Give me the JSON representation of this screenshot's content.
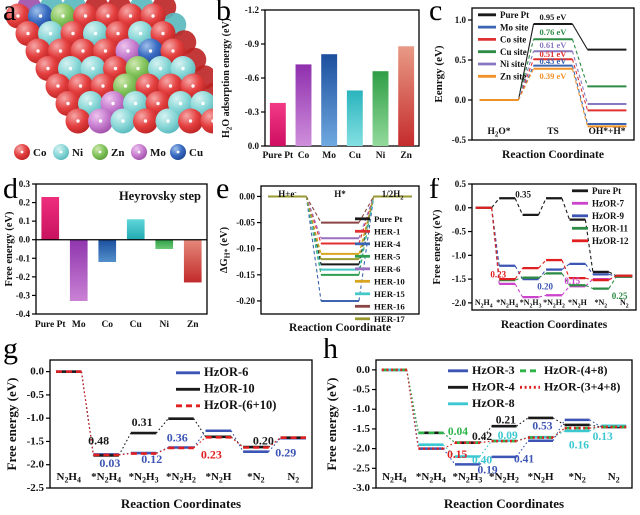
{
  "chart_data": [
    {
      "panel_letter": "a",
      "type": "lattice",
      "legend": [
        {
          "label": "Co",
          "key": "R"
        },
        {
          "label": "Ni",
          "key": "N"
        },
        {
          "label": "Zn",
          "key": "Z"
        },
        {
          "label": "Mo",
          "key": "M"
        },
        {
          "label": "Cu",
          "key": "C"
        }
      ],
      "atom_colors": {
        "R": [
          "#f6a8a8",
          "#e44040",
          "#bc2222"
        ],
        "N": [
          "#d6f2f2",
          "#8cd8d8",
          "#57b8bc"
        ],
        "Z": [
          "#cfe8b0",
          "#85c55e",
          "#5c9e3c"
        ],
        "M": [
          "#eec4ee",
          "#c87fd0",
          "#9e4ea8"
        ],
        "C": [
          "#9fc0ea",
          "#3a6cc3",
          "#1f4694"
        ]
      },
      "front_rows": [
        "RCZRRRR",
        "RNRNRNR",
        "RRRRMCR",
        "RNNRZNN",
        "RRRZRRR",
        "RNMNRNN",
        "RMNRNRR"
      ],
      "back_rows": [
        "MNNRRNR",
        "NRRNRRN",
        "RNRRNRR",
        "RRNRRNR",
        "NRRNRNR",
        "RRNRNRR",
        "NRRNRRN"
      ]
    },
    {
      "panel_letter": "b",
      "type": "bar",
      "ylabel": "H~2~O adsorption energy (eV)",
      "categories": [
        "Pure Pt",
        "Co",
        "Mo",
        "Cu",
        "Ni",
        "Zn"
      ],
      "values": [
        -0.38,
        -0.72,
        -0.81,
        -0.49,
        -0.66,
        -0.88
      ],
      "ylim": [
        0,
        -1.2
      ],
      "yticks": [
        0.0,
        -0.3,
        -0.6,
        -0.9,
        -1.2
      ],
      "dec": 1,
      "bar_colors": [
        [
          "#f23a86",
          "#cf0f62"
        ],
        [
          "#8f2fae",
          "#cf8fdb"
        ],
        [
          "#1b4f9e",
          "#6fa9e0"
        ],
        [
          "#2ab4bc",
          "#84e0e2"
        ],
        [
          "#2f9e45",
          "#93da9c"
        ],
        [
          "#e89a86",
          "#c42c2c"
        ]
      ]
    },
    {
      "panel_letter": "c",
      "type": "step",
      "ylabel": "Eenrgy (eV)",
      "xlabel": "Reaction Coordinate",
      "stages": [
        "H~2~O*",
        "TS",
        "OH*+H*"
      ],
      "stage_pos": "bottom",
      "ylim": [
        -0.5,
        1.15
      ],
      "yticks": [
        1.0,
        0.5,
        0.0,
        -0.5
      ],
      "dec": 1,
      "series": [
        {
          "name": "Pure Pt",
          "color": "#1a1a1a",
          "levels": [
            0.0,
            0.95,
            0.63
          ],
          "connector": "solid"
        },
        {
          "name": "Mo site",
          "color": "#3c64b0",
          "levels": [
            0.0,
            0.43,
            -0.3
          ],
          "connector": "dashed"
        },
        {
          "name": "Co site",
          "color": "#e03030",
          "levels": [
            0.0,
            0.51,
            -0.13
          ],
          "connector": "dashed"
        },
        {
          "name": "Cu site",
          "color": "#2e8b45",
          "levels": [
            0.0,
            0.76,
            0.17
          ],
          "connector": "dashed"
        },
        {
          "name": "Ni site",
          "color": "#8878c0",
          "levels": [
            0.0,
            0.61,
            -0.05
          ],
          "connector": "dashed"
        },
        {
          "name": "Zn site",
          "color": "#f0922a",
          "levels": [
            0.0,
            0.39,
            -0.33
          ],
          "connector": "dashed"
        }
      ],
      "annotations": [
        {
          "text": "0.95 eV",
          "sx": 1,
          "y": 1.04,
          "color": "#1a1a1a"
        },
        {
          "text": "0.76 eV",
          "sx": 1,
          "y": 0.85,
          "color": "#2e8b45"
        },
        {
          "text": "0.61 eV",
          "sx": 1,
          "y": 0.685,
          "color": "#8878c0"
        },
        {
          "text": "0.51 eV",
          "sx": 1,
          "y": 0.575,
          "color": "#e03030"
        },
        {
          "text": "0.43 eV",
          "sx": 1,
          "y": 0.485,
          "color": "#3c64b0"
        },
        {
          "text": "0.39 eV",
          "sx": 1,
          "y": 0.3,
          "color": "#f0922a"
        }
      ]
    },
    {
      "panel_letter": "d",
      "type": "bar",
      "title": "Heyrovsky step",
      "ylabel": "Free energy (eV)",
      "categories": [
        "Pure Pt",
        "Mo",
        "Co",
        "Cu",
        "Ni",
        "Zn"
      ],
      "values": [
        0.23,
        -0.33,
        -0.12,
        0.11,
        -0.05,
        -0.23
      ],
      "ylim": [
        -0.4,
        0.3
      ],
      "yticks": [
        0.3,
        0.2,
        0.1,
        0.0,
        -0.1,
        -0.2,
        -0.3,
        -0.4
      ],
      "dec": 1,
      "bar_colors": [
        [
          "#ee2d7d",
          "#c8135f"
        ],
        [
          "#8f35ae",
          "#ca82d4"
        ],
        [
          "#1b4f9e",
          "#5490cc"
        ],
        [
          "#5fd6da",
          "#22a9b2"
        ],
        [
          "#2f9e45",
          "#6cc878"
        ],
        [
          "#e5887b",
          "#c22a2a"
        ]
      ]
    },
    {
      "panel_letter": "e",
      "type": "step",
      "ylabel": "ΔG~H*~ (eV)",
      "xlabel": "Reaction Coordinate",
      "stages": [
        "H+e^-^",
        "H*",
        "1/2H~2~"
      ],
      "stage_pos": "top",
      "ylim": [
        -0.225,
        0.02
      ],
      "yticks": [
        0.0,
        -0.05,
        -0.1,
        -0.15,
        -0.2
      ],
      "dec": 2,
      "series": [
        {
          "name": "Pure Pt",
          "color": "#1a1a1a",
          "levels": [
            0,
            -0.13,
            0
          ],
          "connector": "dashed"
        },
        {
          "name": "HER-1",
          "color": "#e03030",
          "levels": [
            0,
            -0.09,
            0
          ],
          "connector": "dashed"
        },
        {
          "name": "HER-4",
          "color": "#3c64b0",
          "levels": [
            0,
            -0.2,
            0
          ],
          "connector": "dashed"
        },
        {
          "name": "HER-5",
          "color": "#2e9e50",
          "levels": [
            0,
            -0.15,
            0
          ],
          "connector": "dashed"
        },
        {
          "name": "HER-6",
          "color": "#9a6fc0",
          "levels": [
            0,
            -0.08,
            0
          ],
          "connector": "dashed"
        },
        {
          "name": "HER-10",
          "color": "#d9a520",
          "levels": [
            0,
            -0.11,
            0
          ],
          "connector": "dashed"
        },
        {
          "name": "HER-15",
          "color": "#45c8c8",
          "levels": [
            0,
            -0.14,
            0
          ],
          "connector": "dashed"
        },
        {
          "name": "HER-16",
          "color": "#8b4545",
          "levels": [
            0,
            -0.05,
            0
          ],
          "connector": "dashed"
        },
        {
          "name": "HER-17",
          "color": "#9a9a30",
          "levels": [
            0,
            -0.12,
            0
          ],
          "connector": "dashed"
        }
      ],
      "annotations": []
    },
    {
      "panel_letter": "f",
      "type": "step",
      "ylabel": "Free energy (eV)",
      "xlabel": "Reaction Coordinates",
      "stages": [
        "N~2~H~4~",
        "*N~2~H~4~",
        "*N~2~H~3~",
        "*N~2~H~2~",
        "*N~2~H",
        "*N~2~",
        "N~2~"
      ],
      "stage_pos": "bottom",
      "ylim": [
        -2.15,
        0.5
      ],
      "yticks": [
        0.5,
        0.0,
        -0.5,
        -1.0,
        -1.5,
        -2.0
      ],
      "dec": 1,
      "series": [
        {
          "name": "Pure Pt",
          "color": "#1a1a1a",
          "levels": [
            0.0,
            0.2,
            -0.15,
            0.2,
            -0.25,
            -1.35,
            -1.43
          ],
          "connector": "dashed"
        },
        {
          "name": "HzOR-7",
          "color": "#cc44cc",
          "levels": [
            0.0,
            -1.6,
            -1.88,
            -1.84,
            -1.65,
            -1.5,
            -1.45
          ],
          "connector": "dashed"
        },
        {
          "name": "HzOR-9",
          "color": "#3c55b4",
          "levels": [
            0.0,
            -1.22,
            -1.5,
            -1.3,
            -1.18,
            -1.4,
            -1.44
          ],
          "connector": "dashed"
        },
        {
          "name": "HzOR-11",
          "color": "#2e8b45",
          "levels": [
            0.0,
            -1.52,
            -1.47,
            -1.38,
            -1.63,
            -1.7,
            -1.45
          ],
          "connector": "dashed"
        },
        {
          "name": "HzOR-12",
          "color": "#e02020",
          "levels": [
            0.0,
            -1.5,
            -1.27,
            -1.1,
            -1.48,
            -1.52,
            -1.43
          ],
          "connector": "dashed"
        }
      ],
      "annotations": [
        {
          "text": "0.35",
          "sx": 1.68,
          "y": 0.28,
          "color": "#1a1a1a"
        },
        {
          "text": "0.23",
          "sx": 0.62,
          "y": -1.4,
          "color": "#e02020"
        },
        {
          "text": "0.20",
          "sx": 2.62,
          "y": -1.66,
          "color": "#3c55b4"
        },
        {
          "text": "0.15",
          "sx": 3.78,
          "y": -1.54,
          "color": "#cc44cc"
        },
        {
          "text": "0.25",
          "sx": 5.8,
          "y": -1.86,
          "color": "#2e8b45"
        }
      ]
    },
    {
      "panel_letter": "g",
      "type": "step",
      "ylabel": "Free energy (eV)",
      "xlabel": "Reaction Coordinates",
      "stages": [
        "N~2~H~4~",
        "*N~2~H~4~",
        "*N~2~H~3~",
        "*N~2~H~2~",
        "*N~2~H",
        "*N~2~",
        "N~2~"
      ],
      "stage_pos": "bottom",
      "ylim": [
        -2.5,
        0.25
      ],
      "yticks": [
        0.0,
        -0.5,
        -1.0,
        -1.5,
        -2.0,
        -2.5
      ],
      "dec": 1,
      "series": [
        {
          "name": "HzOR-6",
          "color": "#3c55b4",
          "levels": [
            0.0,
            -1.78,
            -1.75,
            -1.63,
            -1.27,
            -1.72,
            -1.43
          ],
          "connector": "dotted",
          "style": "solid"
        },
        {
          "name": "HzOR-10",
          "color": "#1a1a1a",
          "levels": [
            0.0,
            -1.8,
            -1.32,
            -1.01,
            -1.4,
            -1.62,
            -1.42
          ],
          "connector": "dotted",
          "style": "solid"
        },
        {
          "name": "HzOR-(6+10)",
          "color": "#e02020",
          "levels": [
            0.0,
            -1.79,
            -1.76,
            -1.64,
            -1.41,
            -1.63,
            -1.42
          ],
          "connector": "dotted",
          "style": "dashed"
        }
      ],
      "annotations": [
        {
          "text": "0.48",
          "sx": 0.8,
          "y": -1.5,
          "color": "#1a1a1a"
        },
        {
          "text": "0.31",
          "sx": 1.96,
          "y": -1.1,
          "color": "#1a1a1a"
        },
        {
          "text": "0.36",
          "sx": 2.9,
          "y": -1.44,
          "color": "#3c55b4"
        },
        {
          "text": "0.23",
          "sx": 3.81,
          "y": -1.8,
          "color": "#e02020"
        },
        {
          "text": "0.20",
          "sx": 5.2,
          "y": -1.5,
          "color": "#1a1a1a"
        },
        {
          "text": "0.03",
          "sx": 1.1,
          "y": -1.98,
          "color": "#3c55b4"
        },
        {
          "text": "0.12",
          "sx": 2.22,
          "y": -1.9,
          "color": "#3c55b4"
        },
        {
          "text": "0.29",
          "sx": 5.8,
          "y": -1.76,
          "color": "#3c55b4"
        }
      ]
    },
    {
      "panel_letter": "h",
      "type": "step",
      "ylabel": "Free energy (eV)",
      "xlabel": "Reaction Coordinates",
      "stages": [
        "N~2~H~4~",
        "*N~2~H~4~",
        "*N~2~H~3~",
        "*N~2~H~2~",
        "*N~2~H",
        "*N~2~",
        "N~2~"
      ],
      "stage_pos": "bottom",
      "ylim": [
        -3.0,
        0.25
      ],
      "yticks": [
        0.0,
        -0.5,
        -1.0,
        -1.5,
        -2.0,
        -2.5,
        -3.0
      ],
      "dec": 1,
      "series": [
        {
          "name": "HzOR-3",
          "color": "#3c55b4",
          "levels": [
            0.0,
            -2.0,
            -2.4,
            -2.21,
            -1.8,
            -1.27,
            -1.45
          ],
          "connector": "dotted",
          "style": "solid"
        },
        {
          "name": "HzOR-4",
          "color": "#1a1a1a",
          "levels": [
            0.0,
            -1.6,
            -1.85,
            -1.43,
            -1.22,
            -1.4,
            -1.45
          ],
          "connector": "dotted",
          "style": "solid"
        },
        {
          "name": "HzOR-8",
          "color": "#3cc8d0",
          "levels": [
            0.0,
            -1.9,
            -2.2,
            -1.8,
            -1.71,
            -1.55,
            -1.42
          ],
          "connector": "dotted",
          "style": "solid"
        },
        {
          "name": "HzOR-(4+8)",
          "color": "#2eb34a",
          "levels": [
            0.0,
            -1.6,
            -1.85,
            -1.81,
            -1.72,
            -1.48,
            -1.45
          ],
          "connector": "dotted",
          "style": "dashed"
        },
        {
          "name": "HzOR-(3+4+8)",
          "color": "#e02020",
          "levels": [
            0.0,
            -2.0,
            -1.85,
            -1.81,
            -1.72,
            -1.48,
            -1.45
          ],
          "connector": "dotted",
          "style": "dotted"
        }
      ],
      "annotations": [
        {
          "text": "0.04",
          "sx": 1.74,
          "y": -1.58,
          "color": "#2eb34a"
        },
        {
          "text": "0.42",
          "sx": 2.4,
          "y": -1.7,
          "color": "#1a1a1a"
        },
        {
          "text": "0.21",
          "sx": 3.05,
          "y": -1.28,
          "color": "#1a1a1a"
        },
        {
          "text": "0.09",
          "sx": 3.1,
          "y": -1.68,
          "color": "#3cc8d0"
        },
        {
          "text": "0.53",
          "sx": 4.05,
          "y": -1.44,
          "color": "#3c55b4"
        },
        {
          "text": "0.15",
          "sx": 1.72,
          "y": -2.16,
          "color": "#e02020"
        },
        {
          "text": "0.40",
          "sx": 2.4,
          "y": -2.3,
          "color": "#3cc8d0"
        },
        {
          "text": "0.19",
          "sx": 2.55,
          "y": -2.56,
          "color": "#3c55b4"
        },
        {
          "text": "0.41",
          "sx": 3.55,
          "y": -2.28,
          "color": "#3c55b4"
        },
        {
          "text": "0.16",
          "sx": 5.05,
          "y": -1.92,
          "color": "#3cc8d0"
        },
        {
          "text": "0.13",
          "sx": 5.7,
          "y": -1.7,
          "color": "#3cc8d0"
        }
      ]
    }
  ]
}
